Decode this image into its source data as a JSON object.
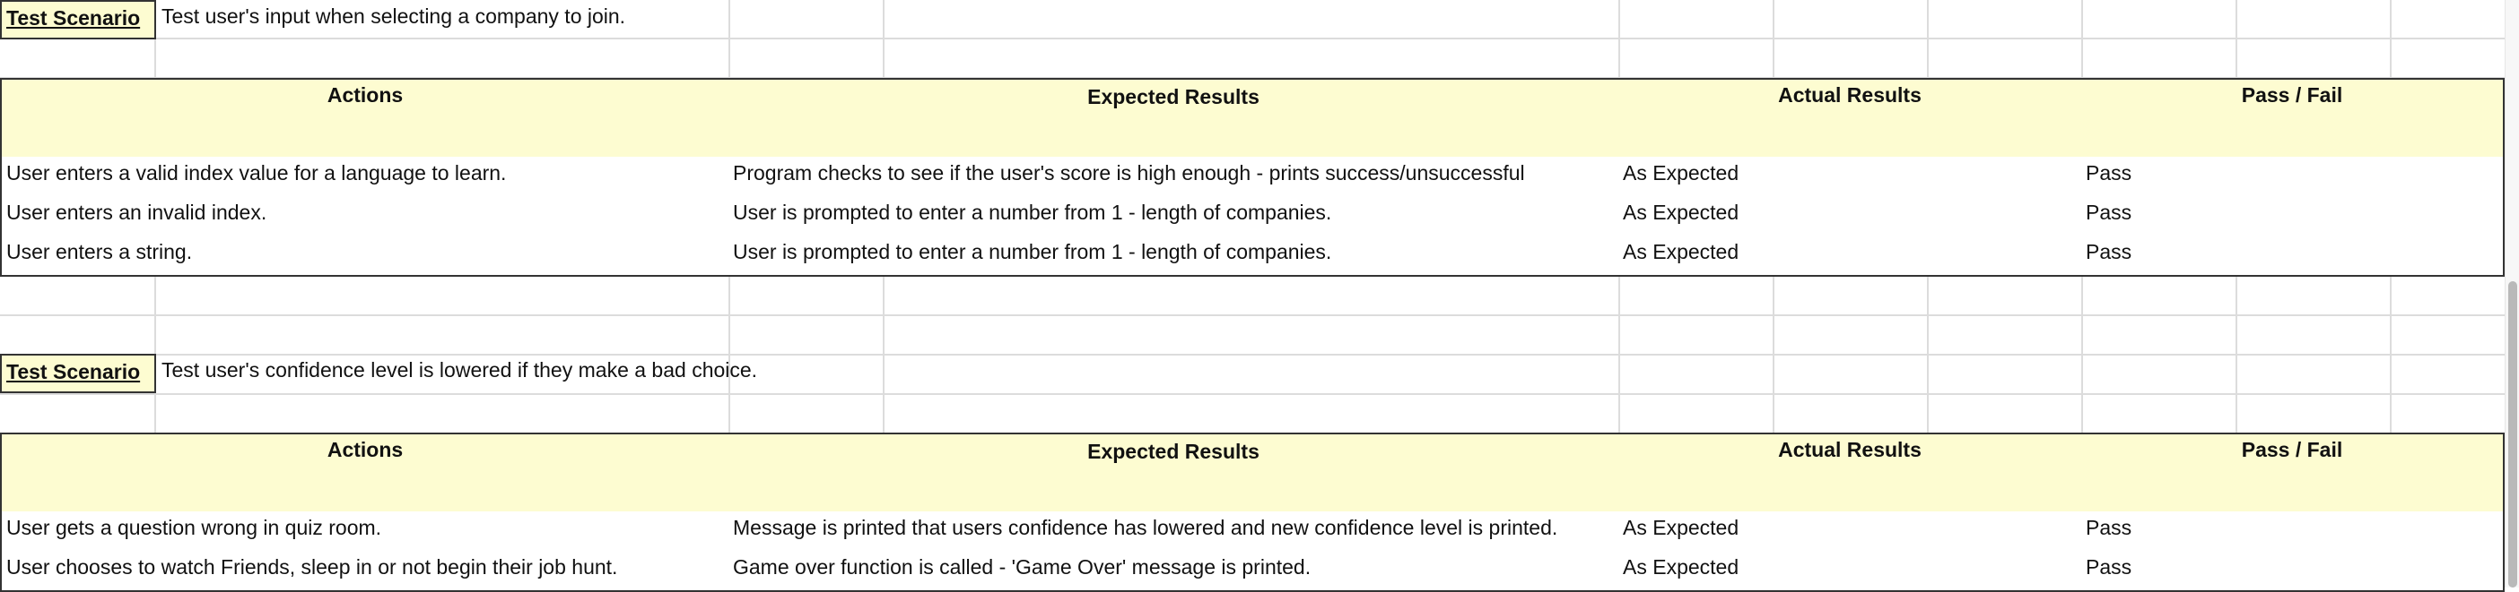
{
  "sheet": {
    "blocks": [
      {
        "scenario_label": "Test Scenario",
        "scenario_text": "Test user's input when selecting a company to join.",
        "headers": {
          "actions": "Actions",
          "expected": "Expected Results",
          "actual": "Actual Results",
          "pass_fail": "Pass / Fail"
        },
        "rows": [
          {
            "action": "User enters a valid index value for a language to learn.",
            "expected": "Program checks to see if the user's score is high enough - prints success/unsuccessful",
            "actual": "As Expected",
            "result": "Pass"
          },
          {
            "action": "User enters an invalid index.",
            "expected": "User is prompted to enter a number from 1 - length of companies.",
            "actual": "As Expected",
            "result": "Pass"
          },
          {
            "action": "User enters a string.",
            "expected": "User is prompted to enter a number from 1 - length of companies.",
            "actual": "As Expected",
            "result": "Pass"
          }
        ]
      },
      {
        "scenario_label": "Test Scenario",
        "scenario_text": "Test user's confidence level is lowered if they make a bad choice.",
        "headers": {
          "actions": "Actions",
          "expected": "Expected Results",
          "actual": "Actual Results",
          "pass_fail": "Pass / Fail"
        },
        "rows": [
          {
            "action": "User gets a question wrong in quiz room.",
            "expected": "Message is printed that users confidence has lowered and new confidence level is printed.",
            "actual": "As Expected",
            "result": "Pass"
          },
          {
            "action": "User chooses to watch Friends, sleep in or not begin their job hunt.",
            "expected": "Game over function is called - 'Game Over' message is printed.",
            "actual": "As Expected",
            "result": "Pass"
          }
        ]
      }
    ]
  },
  "colors": {
    "highlight_fill": "#fdfcd1",
    "grid_line": "#dcdcdc",
    "cell_border": "#333333"
  }
}
